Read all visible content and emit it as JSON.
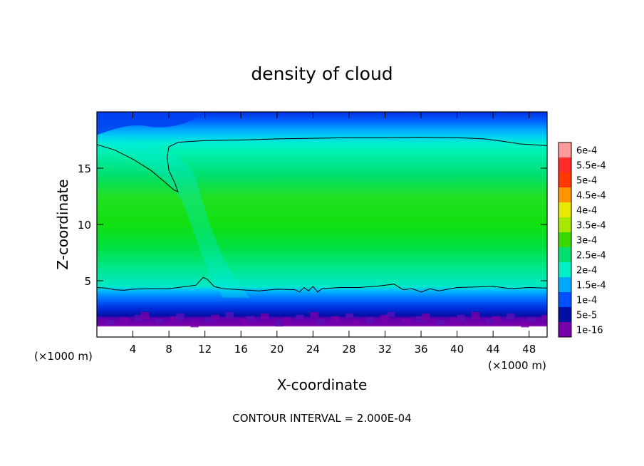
{
  "chart_data": {
    "type": "heatmap",
    "title": "density of cloud",
    "xlabel": "X-coordinate",
    "ylabel": "Z-coordinate",
    "x_unit_label_left": "(×1000 m)",
    "x_unit_label_right": "(×1000 m)",
    "xlim": [
      0,
      50
    ],
    "ylim": [
      0,
      20
    ],
    "x_ticks": [
      4,
      8,
      12,
      16,
      20,
      24,
      28,
      32,
      36,
      40,
      44,
      48
    ],
    "y_ticks": [
      5,
      10,
      15
    ],
    "footer": "CONTOUR INTERVAL = 2.000E-04",
    "colorbar": {
      "labels": [
        "6e-4",
        "5.5e-4",
        "5e-4",
        "4.5e-4",
        "4e-4",
        "3.5e-4",
        "3e-4",
        "2.5e-4",
        "2e-4",
        "1.5e-4",
        "1e-4",
        "5e-5",
        "1e-16"
      ],
      "colors": [
        "#ff9a9a",
        "#ff2a2a",
        "#ff3800",
        "#ff9500",
        "#e8e800",
        "#a8e800",
        "#38d800",
        "#00e070",
        "#00f0c8",
        "#00a8ff",
        "#0050ff",
        "#0010a0",
        "#7800a8"
      ]
    },
    "contour_level": 0.0002
  }
}
